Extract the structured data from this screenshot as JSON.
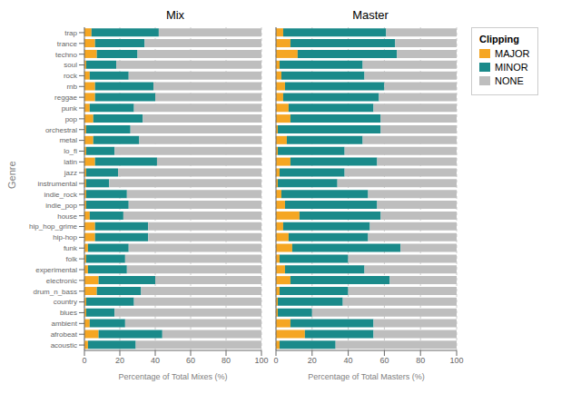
{
  "chart_data": [
    {
      "type": "bar",
      "orientation": "horizontal",
      "stacked": true,
      "grid": true,
      "title": "Mix",
      "xlabel": "Percentage of Total Mixes (%)",
      "ylabel": "Genre",
      "categories": [
        "trap",
        "trance",
        "techno",
        "soul",
        "rock",
        "rnb",
        "reggae",
        "punk",
        "pop",
        "orchestral",
        "metal",
        "lo_fi",
        "latin",
        "jazz",
        "instrumental",
        "indie_rock",
        "indie_pop",
        "house",
        "hip_hop_grime",
        "hip-hop",
        "funk",
        "folk",
        "experimental",
        "electronic",
        "drum_n_bass",
        "country",
        "blues",
        "ambient",
        "afrobeat",
        "acoustic"
      ],
      "series": [
        {
          "name": "MAJOR",
          "color": "#F5A623",
          "values": [
            4,
            6,
            7,
            1,
            3,
            6,
            6,
            3,
            5,
            1,
            5,
            1,
            6,
            1,
            1,
            1,
            1,
            3,
            6,
            6,
            2,
            1,
            2,
            8,
            7,
            1,
            1,
            3,
            8,
            2
          ]
        },
        {
          "name": "MINOR",
          "color": "#1A8A8A",
          "values": [
            38,
            28,
            23,
            17,
            22,
            33,
            34,
            25,
            28,
            25,
            26,
            16,
            35,
            18,
            13,
            23,
            24,
            19,
            30,
            30,
            23,
            22,
            22,
            32,
            25,
            27,
            16,
            20,
            36,
            27
          ]
        },
        {
          "name": "NONE",
          "color": "#BEBEBE",
          "values": [
            58,
            66,
            70,
            82,
            75,
            61,
            60,
            72,
            67,
            74,
            69,
            83,
            59,
            81,
            86,
            76,
            75,
            78,
            64,
            64,
            75,
            77,
            76,
            60,
            68,
            72,
            83,
            77,
            56,
            71
          ]
        }
      ],
      "xlim": [
        0,
        100
      ],
      "xticks": [
        0,
        20,
        40,
        60,
        80,
        100
      ]
    },
    {
      "type": "bar",
      "orientation": "horizontal",
      "stacked": true,
      "grid": true,
      "title": "Master",
      "xlabel": "Percentage of Total Masters (%)",
      "tick_labels": "x",
      "legend": "right",
      "legend_title": "Clipping",
      "categories": [
        "trap",
        "trance",
        "techno",
        "soul",
        "rock",
        "rnb",
        "reggae",
        "punk",
        "pop",
        "orchestral",
        "metal",
        "lo_fi",
        "latin",
        "jazz",
        "instrumental",
        "indie_rock",
        "indie_pop",
        "house",
        "hip_hop_grime",
        "hip-hop",
        "funk",
        "folk",
        "experimental",
        "electronic",
        "drum_n_bass",
        "country",
        "blues",
        "ambient",
        "afrobeat",
        "acoustic"
      ],
      "series": [
        {
          "name": "MAJOR",
          "color": "#F5A623",
          "values": [
            4,
            8,
            12,
            2,
            3,
            5,
            4,
            7,
            8,
            1,
            6,
            1,
            8,
            2,
            1,
            3,
            5,
            13,
            4,
            7,
            9,
            2,
            5,
            8,
            2,
            1,
            1,
            8,
            16,
            2
          ]
        },
        {
          "name": "MINOR",
          "color": "#1A8A8A",
          "values": [
            57,
            58,
            55,
            46,
            46,
            55,
            53,
            47,
            50,
            57,
            42,
            37,
            48,
            36,
            33,
            48,
            51,
            45,
            48,
            44,
            60,
            38,
            44,
            55,
            38,
            36,
            19,
            46,
            38,
            31
          ]
        },
        {
          "name": "NONE",
          "color": "#BEBEBE",
          "values": [
            39,
            34,
            33,
            52,
            51,
            40,
            43,
            46,
            42,
            42,
            52,
            62,
            44,
            62,
            66,
            49,
            44,
            42,
            48,
            49,
            31,
            60,
            51,
            37,
            60,
            63,
            80,
            46,
            46,
            67
          ]
        }
      ],
      "xlim": [
        0,
        100
      ],
      "xticks": [
        0,
        20,
        40,
        60,
        80,
        100
      ]
    }
  ]
}
